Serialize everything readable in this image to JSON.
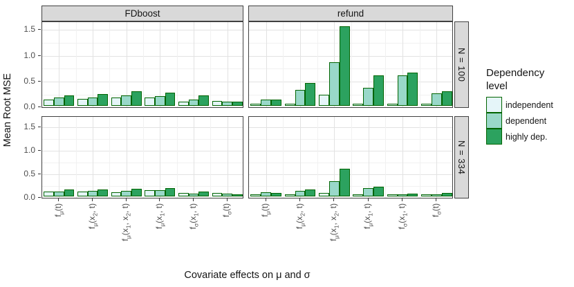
{
  "chart_data": {
    "type": "bar",
    "title": "",
    "xlabel": "Covariate effects on μ and σ",
    "ylabel": "Mean Root MSE",
    "col_facets": [
      "FDboost",
      "refund"
    ],
    "row_facets": [
      "N = 100",
      "N = 334"
    ],
    "categories": [
      "f_{μ}(t)",
      "f_{μ}(x_{2}, t)",
      "f_{μ}(x_{1}, x_{2}, t)",
      "f_{μ}(x_{1}, t)",
      "f_{σ}(x_{1}, t)",
      "f_{σ}(t)"
    ],
    "series": [
      "independent",
      "dependent",
      "highly dep."
    ],
    "yticks": [
      0.0,
      0.5,
      1.0,
      1.5
    ],
    "ytick_labels": [
      "0.0",
      "0.5",
      "1.0",
      "1.5"
    ],
    "minor_yticks": [
      0.25,
      0.75,
      1.25
    ],
    "ylim": [
      0,
      1.68
    ],
    "grid": true,
    "legend_position": "right",
    "legend": {
      "title_lines": [
        "Dependency",
        "level"
      ],
      "entries": [
        "independent",
        "dependent",
        "highly dep."
      ]
    },
    "colors": {
      "fills": [
        "#e5f5f9",
        "#99d8c9",
        "#2ca25f"
      ],
      "stroke": "#006400",
      "strip_background": "#d9d9d9",
      "panel_background": "#ffffff"
    },
    "values": [
      [
        [
          [
            0.12,
            0.16,
            0.2
          ],
          [
            0.14,
            0.17,
            0.23
          ],
          [
            0.17,
            0.21,
            0.28
          ],
          [
            0.16,
            0.19,
            0.26
          ],
          [
            0.09,
            0.12,
            0.2
          ],
          [
            0.1,
            0.09,
            0.08
          ]
        ],
        [
          [
            0.1,
            0.11,
            0.14
          ],
          [
            0.11,
            0.12,
            0.15
          ],
          [
            0.09,
            0.12,
            0.16
          ],
          [
            0.13,
            0.13,
            0.18
          ],
          [
            0.07,
            0.06,
            0.1
          ],
          [
            0.08,
            0.06,
            0.04
          ]
        ]
      ],
      [
        [
          [
            0.05,
            0.13,
            0.12
          ],
          [
            0.05,
            0.31,
            0.45
          ],
          [
            0.22,
            0.85,
            1.55
          ],
          [
            0.05,
            0.35,
            0.59
          ],
          [
            0.04,
            0.6,
            0.65
          ],
          [
            0.02,
            0.24,
            0.28
          ]
        ],
        [
          [
            0.03,
            0.09,
            0.08
          ],
          [
            0.04,
            0.12,
            0.14
          ],
          [
            0.07,
            0.32,
            0.58
          ],
          [
            0.02,
            0.17,
            0.2
          ],
          [
            0.01,
            0.05,
            0.06
          ],
          [
            0.01,
            0.03,
            0.08
          ]
        ]
      ]
    ]
  }
}
